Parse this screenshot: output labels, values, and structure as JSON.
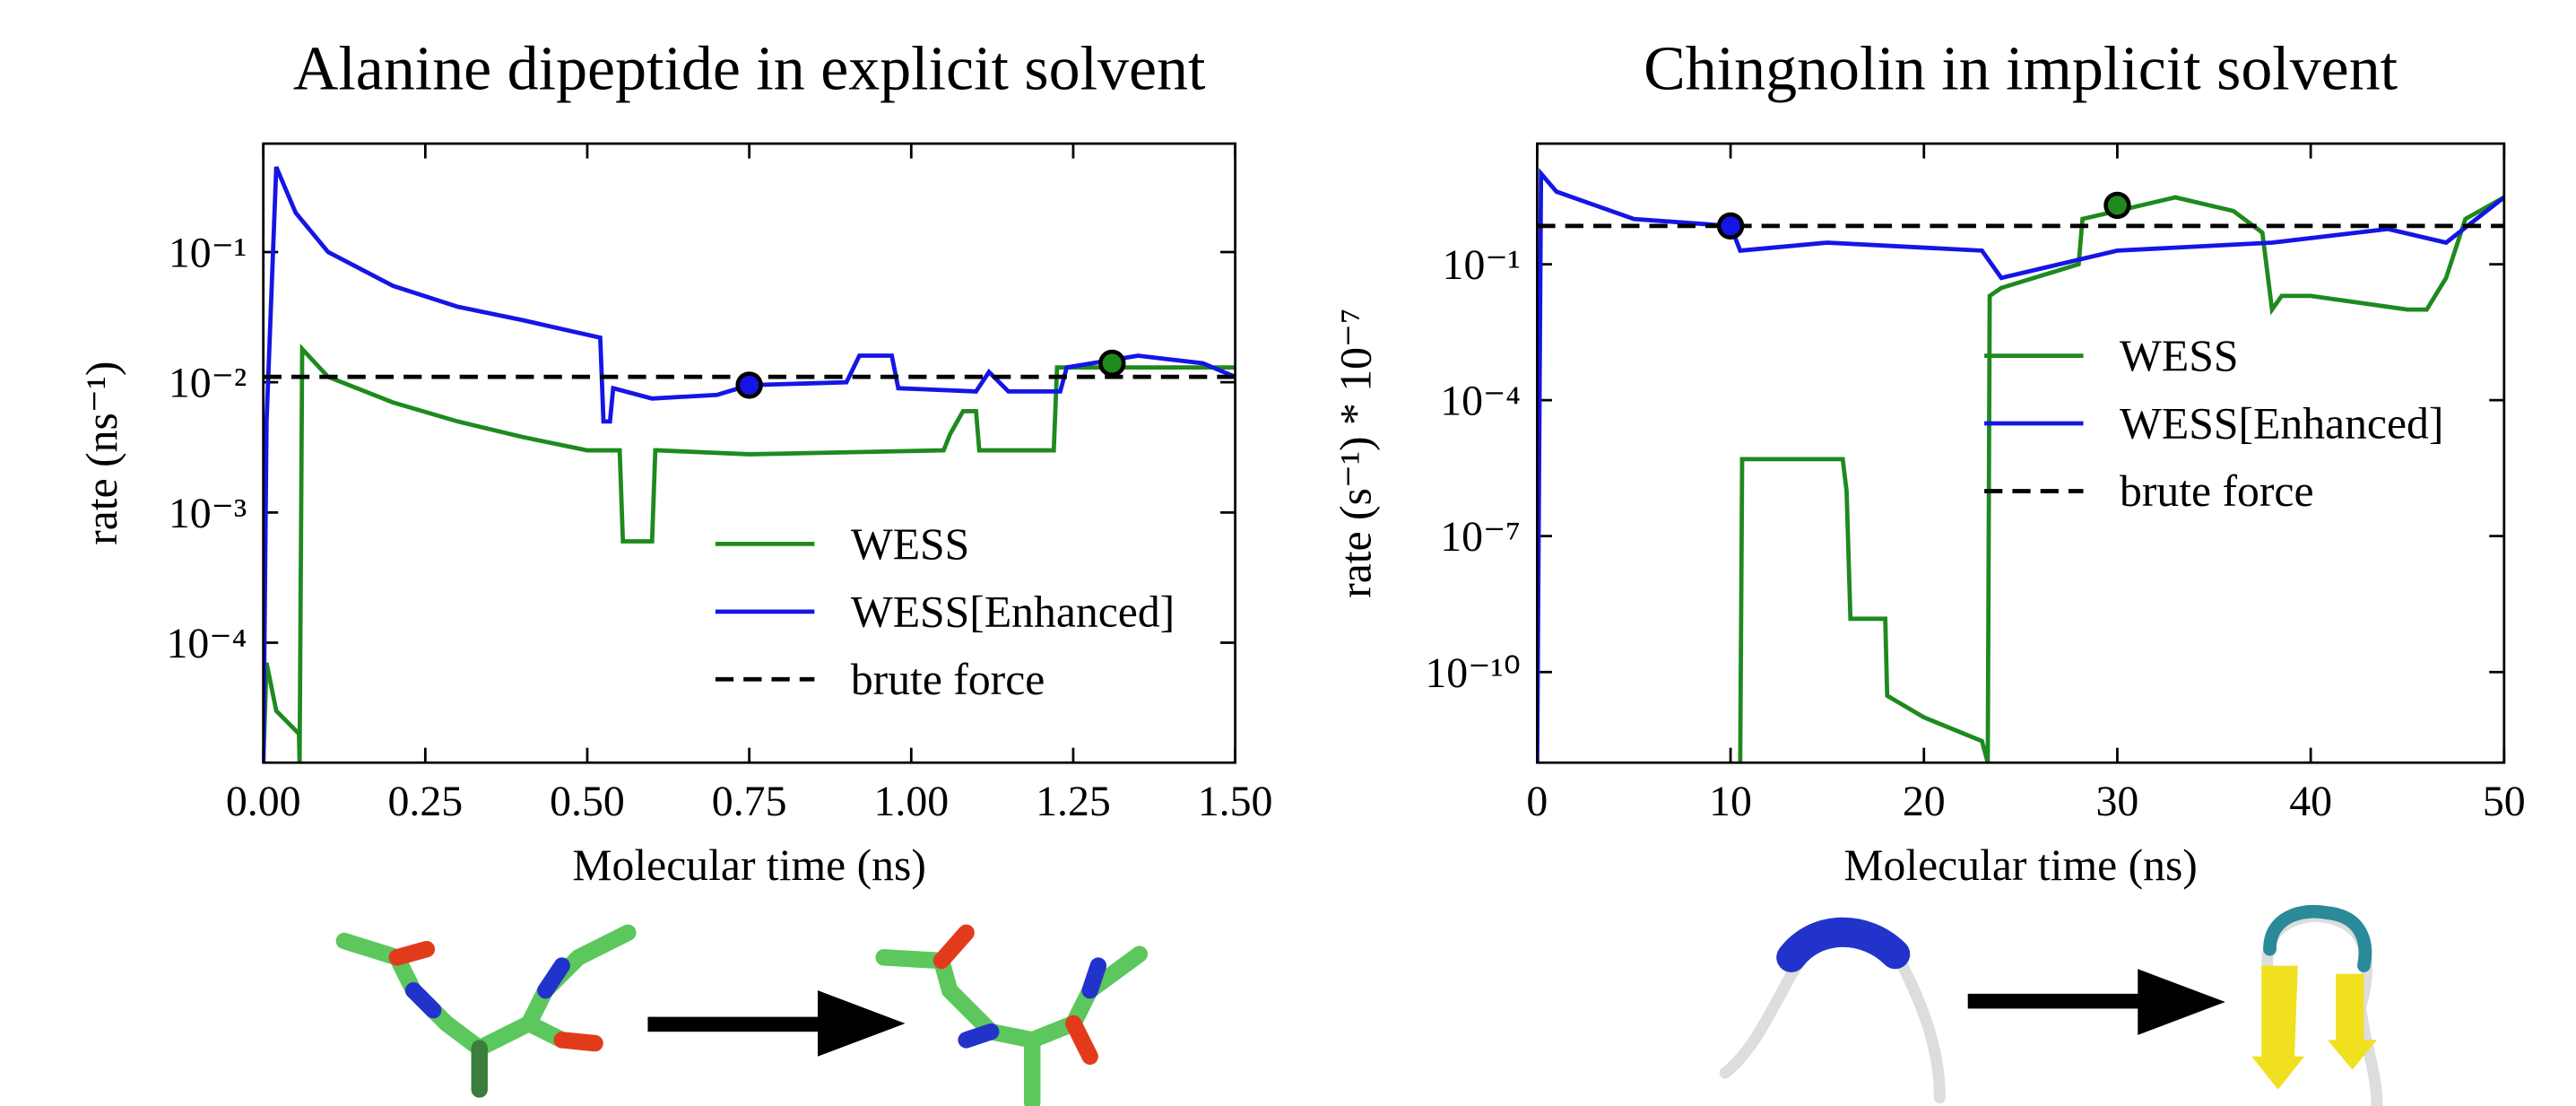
{
  "chart_data": [
    {
      "type": "line",
      "title": "Alanine dipeptide in explicit solvent",
      "xlabel": "Molecular time (ns)",
      "ylabel": "rate (ns⁻¹)",
      "xlim": [
        0,
        1.5
      ],
      "ylim": [
        1.2e-05,
        0.68
      ],
      "log_y": true,
      "legend": "lower right",
      "xticks": [
        {
          "value": 0,
          "label": "0.00"
        },
        0.25,
        {
          "value": 0.5,
          "label": "0.50"
        },
        0.75,
        {
          "value": 1,
          "label": "1.00"
        },
        1.25,
        {
          "value": 1.5,
          "label": "1.50"
        }
      ],
      "yticks": [
        {
          "value": 0.0001,
          "label": "10⁻⁴"
        },
        {
          "value": 0.001,
          "label": "10⁻³"
        },
        {
          "value": 0.01,
          "label": "10⁻²"
        },
        {
          "value": 0.1,
          "label": "10⁻¹"
        }
      ],
      "series": [
        {
          "name": "WESS",
          "color": "#1e8a1e",
          "style": "solid",
          "x": [
            0,
            0.005,
            0.02,
            0.055,
            0.056,
            0.06,
            0.1,
            0.2,
            0.3,
            0.4,
            0.5,
            0.55,
            0.555,
            0.57,
            0.6,
            0.605,
            0.61,
            0.75,
            1.05,
            1.06,
            1.08,
            1.1,
            1.105,
            1.22,
            1.225,
            1.5
          ],
          "values": [
            1.2e-05,
            7e-05,
            3e-05,
            2e-05,
            1.2e-05,
            0.018,
            0.011,
            0.007,
            0.005,
            0.0038,
            0.003,
            0.003,
            0.0006,
            0.0006,
            0.0006,
            0.003,
            0.003,
            0.0028,
            0.003,
            0.004,
            0.006,
            0.006,
            0.003,
            0.003,
            0.013,
            0.013
          ],
          "highlight": {
            "x": 1.31,
            "y": 0.014
          }
        },
        {
          "name": "WESS[Enhanced]",
          "color": "#1515e6",
          "style": "solid",
          "x": [
            0,
            0.005,
            0.02,
            0.05,
            0.1,
            0.2,
            0.3,
            0.4,
            0.52,
            0.525,
            0.535,
            0.54,
            0.6,
            0.7,
            0.75,
            0.9,
            0.92,
            0.97,
            0.98,
            1.1,
            1.12,
            1.15,
            1.23,
            1.24,
            1.35,
            1.45,
            1.5
          ],
          "values": [
            1.2e-05,
            0.005,
            0.45,
            0.2,
            0.1,
            0.055,
            0.038,
            0.03,
            0.022,
            0.005,
            0.005,
            0.009,
            0.0075,
            0.008,
            0.0095,
            0.01,
            0.016,
            0.016,
            0.009,
            0.0085,
            0.012,
            0.0085,
            0.0085,
            0.013,
            0.016,
            0.014,
            0.011
          ],
          "highlight": {
            "x": 0.75,
            "y": 0.0095
          }
        },
        {
          "name": "brute force",
          "color": "#000000",
          "style": "dashed",
          "x": [
            0,
            1.5
          ],
          "values": [
            0.011,
            0.011
          ]
        }
      ]
    },
    {
      "type": "line",
      "title": "Chingnolin in implicit solvent",
      "xlabel": "Molecular time (ns)",
      "ylabel": "rate (s⁻¹) * 10⁻⁷",
      "xlim": [
        0,
        50
      ],
      "ylim": [
        1e-12,
        46
      ],
      "log_y": true,
      "legend": "center right",
      "xticks": [
        0,
        10,
        20,
        30,
        40,
        50
      ],
      "yticks": [
        {
          "value": 1e-10,
          "label": "10⁻¹⁰"
        },
        {
          "value": 1e-07,
          "label": "10⁻⁷"
        },
        {
          "value": 0.0001,
          "label": "10⁻⁴"
        },
        {
          "value": 0.1,
          "label": "10⁻¹"
        }
      ],
      "series": [
        {
          "name": "WESS",
          "color": "#1e8a1e",
          "style": "solid",
          "x": [
            10.5,
            10.6,
            15.8,
            16,
            16.2,
            18,
            18.1,
            20,
            23,
            23.3,
            23.4,
            24,
            28,
            28.2,
            30,
            33,
            36,
            37.5,
            38,
            38.5,
            40,
            45,
            46,
            47,
            48,
            50
          ],
          "values": [
            1e-12,
            5e-06,
            5e-06,
            1e-06,
            1.5e-09,
            1.5e-09,
            3e-11,
            1e-11,
            3e-12,
            1e-12,
            0.02,
            0.03,
            0.1,
            1,
            1.5,
            3,
            1.5,
            0.5,
            0.01,
            0.02,
            0.02,
            0.01,
            0.01,
            0.05,
            1,
            3
          ],
          "highlight": {
            "x": 30,
            "y": 2
          }
        },
        {
          "name": "WESS[Enhanced]",
          "color": "#1515e6",
          "style": "solid",
          "x": [
            0,
            0.2,
            1,
            5,
            10,
            10.5,
            15,
            23,
            24,
            27,
            30,
            38,
            44,
            47,
            50
          ],
          "values": [
            1e-12,
            10,
            4,
            1,
            0.7,
            0.2,
            0.3,
            0.2,
            0.05,
            0.1,
            0.2,
            0.3,
            0.6,
            0.3,
            3
          ],
          "highlight": {
            "x": 10,
            "y": 0.7
          }
        },
        {
          "name": "brute force",
          "color": "#000000",
          "style": "dashed",
          "x": [
            0,
            50
          ],
          "values": [
            0.7,
            0.7
          ]
        }
      ]
    }
  ]
}
